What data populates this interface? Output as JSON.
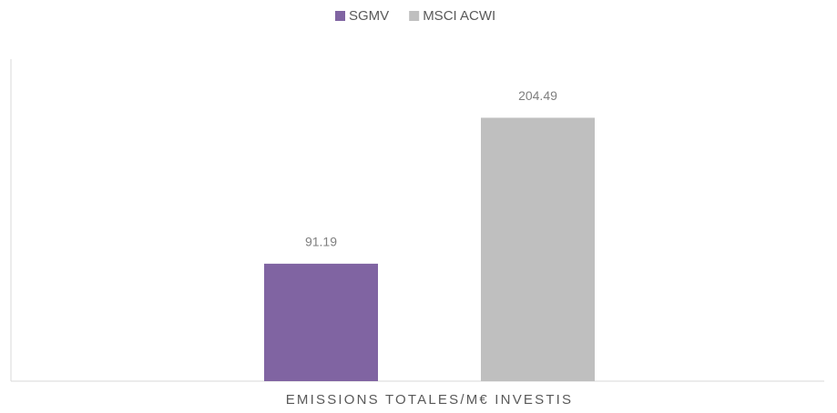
{
  "chart_data": {
    "type": "bar",
    "categories": [
      "EMISSIONS TOTALES/M€ INVESTIS"
    ],
    "series": [
      {
        "name": "SGMV",
        "color": "#8064a2",
        "values": [
          91.19
        ]
      },
      {
        "name": "MSCI ACWI",
        "color": "#bfbfbf",
        "values": [
          204.49
        ]
      }
    ],
    "ylim": [
      0,
      250
    ],
    "legend": "top"
  }
}
